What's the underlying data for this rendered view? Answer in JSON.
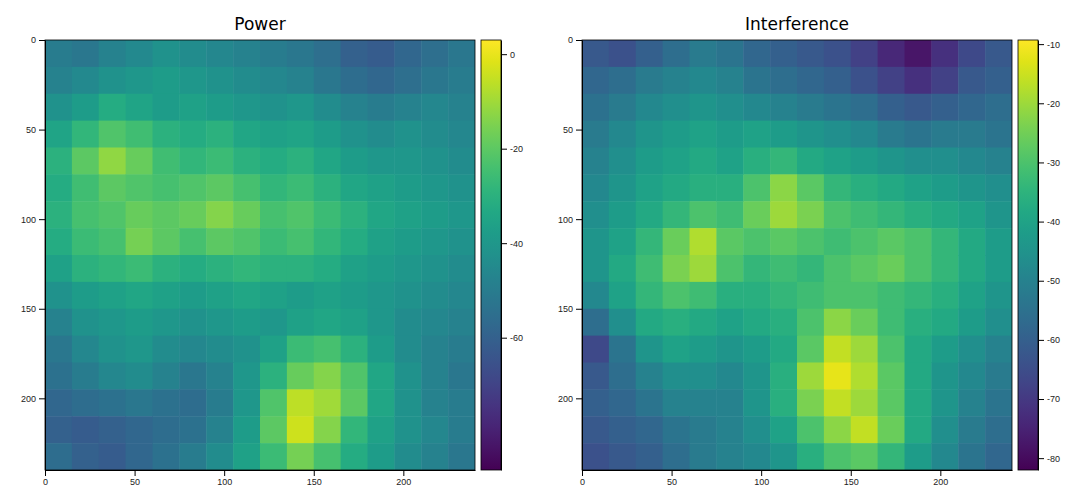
{
  "chart_data": [
    {
      "type": "heatmap",
      "title": "Power",
      "color": "viridis",
      "x_edges": [
        0,
        15,
        30,
        45,
        60,
        75,
        90,
        105,
        120,
        135,
        150,
        165,
        180,
        195,
        210,
        225,
        240
      ],
      "y_edges": [
        0,
        15,
        30,
        45,
        60,
        75,
        90,
        105,
        120,
        135,
        150,
        165,
        180,
        195,
        210,
        225,
        240
      ],
      "xlim": [
        0,
        240
      ],
      "ylim": [
        240,
        0
      ],
      "xticks": [
        0,
        50,
        100,
        150,
        200
      ],
      "yticks": [
        0,
        50,
        100,
        150,
        200
      ],
      "cells": [
        [
          -50,
          -52,
          -48,
          -45,
          -42,
          -44,
          -46,
          -48,
          -50,
          -52,
          -55,
          -60,
          -62,
          -58,
          -55,
          -52
        ],
        [
          -48,
          -45,
          -42,
          -40,
          -38,
          -40,
          -42,
          -44,
          -46,
          -48,
          -52,
          -56,
          -58,
          -55,
          -52,
          -50
        ],
        [
          -42,
          -38,
          -32,
          -35,
          -38,
          -36,
          -38,
          -40,
          -42,
          -40,
          -44,
          -48,
          -50,
          -48,
          -46,
          -48
        ],
        [
          -35,
          -28,
          -22,
          -25,
          -30,
          -32,
          -30,
          -34,
          -36,
          -35,
          -38,
          -42,
          -44,
          -42,
          -44,
          -46
        ],
        [
          -30,
          -20,
          -12,
          -18,
          -25,
          -28,
          -26,
          -30,
          -32,
          -30,
          -34,
          -38,
          -40,
          -40,
          -42,
          -44
        ],
        [
          -32,
          -25,
          -20,
          -22,
          -24,
          -22,
          -20,
          -24,
          -28,
          -26,
          -30,
          -34,
          -36,
          -38,
          -40,
          -42
        ],
        [
          -30,
          -24,
          -22,
          -18,
          -20,
          -18,
          -14,
          -18,
          -24,
          -22,
          -26,
          -30,
          -34,
          -36,
          -38,
          -40
        ],
        [
          -32,
          -26,
          -24,
          -16,
          -20,
          -24,
          -20,
          -22,
          -26,
          -24,
          -28,
          -32,
          -36,
          -38,
          -40,
          -42
        ],
        [
          -36,
          -30,
          -28,
          -26,
          -30,
          -32,
          -30,
          -28,
          -30,
          -30,
          -32,
          -36,
          -38,
          -40,
          -42,
          -44
        ],
        [
          -42,
          -38,
          -36,
          -34,
          -36,
          -38,
          -36,
          -34,
          -36,
          -38,
          -36,
          -38,
          -40,
          -42,
          -44,
          -46
        ],
        [
          -48,
          -42,
          -40,
          -38,
          -40,
          -42,
          -40,
          -38,
          -40,
          -36,
          -34,
          -36,
          -40,
          -44,
          -46,
          -48
        ],
        [
          -52,
          -46,
          -42,
          -40,
          -44,
          -46,
          -44,
          -42,
          -36,
          -26,
          -24,
          -30,
          -38,
          -44,
          -48,
          -50
        ],
        [
          -54,
          -50,
          -46,
          -44,
          -48,
          -52,
          -48,
          -40,
          -30,
          -18,
          -14,
          -22,
          -34,
          -42,
          -48,
          -52
        ],
        [
          -58,
          -56,
          -54,
          -52,
          -54,
          -56,
          -50,
          -40,
          -22,
          -6,
          -10,
          -20,
          -34,
          -42,
          -48,
          -50
        ],
        [
          -60,
          -62,
          -60,
          -58,
          -56,
          -54,
          -48,
          -38,
          -20,
          -4,
          -14,
          -28,
          -36,
          -42,
          -46,
          -50
        ],
        [
          -56,
          -60,
          -62,
          -58,
          -54,
          -50,
          -44,
          -36,
          -26,
          -16,
          -24,
          -32,
          -38,
          -44,
          -48,
          -52
        ]
      ],
      "colorbar": {
        "range": [
          -88,
          3
        ],
        "ticks": [
          0,
          -20,
          -40,
          -60
        ]
      }
    },
    {
      "type": "heatmap",
      "title": "Interference",
      "color": "viridis",
      "x_edges": [
        0,
        15,
        30,
        45,
        60,
        75,
        90,
        105,
        120,
        135,
        150,
        165,
        180,
        195,
        210,
        225,
        240
      ],
      "y_edges": [
        0,
        15,
        30,
        45,
        60,
        75,
        90,
        105,
        120,
        135,
        150,
        165,
        180,
        195,
        210,
        225,
        240
      ],
      "xlim": [
        0,
        240
      ],
      "ylim": [
        240,
        0
      ],
      "xticks": [
        0,
        50,
        100,
        150,
        200
      ],
      "yticks": [
        0,
        50,
        100,
        150,
        200
      ],
      "cells": [
        [
          -62,
          -64,
          -60,
          -56,
          -52,
          -54,
          -58,
          -60,
          -62,
          -64,
          -68,
          -74,
          -78,
          -72,
          -66,
          -62
        ],
        [
          -58,
          -56,
          -52,
          -50,
          -48,
          -50,
          -54,
          -56,
          -58,
          -60,
          -64,
          -68,
          -72,
          -68,
          -62,
          -60
        ],
        [
          -55,
          -52,
          -48,
          -46,
          -44,
          -46,
          -48,
          -50,
          -52,
          -54,
          -56,
          -60,
          -62,
          -60,
          -58,
          -56
        ],
        [
          -52,
          -48,
          -44,
          -42,
          -40,
          -42,
          -40,
          -42,
          -44,
          -46,
          -48,
          -52,
          -54,
          -52,
          -52,
          -54
        ],
        [
          -50,
          -46,
          -42,
          -40,
          -38,
          -40,
          -36,
          -34,
          -38,
          -40,
          -42,
          -44,
          -46,
          -46,
          -48,
          -50
        ],
        [
          -48,
          -44,
          -40,
          -38,
          -36,
          -36,
          -30,
          -22,
          -28,
          -34,
          -36,
          -38,
          -40,
          -42,
          -44,
          -46
        ],
        [
          -46,
          -42,
          -38,
          -34,
          -30,
          -32,
          -26,
          -20,
          -24,
          -30,
          -32,
          -34,
          -36,
          -38,
          -40,
          -44
        ],
        [
          -44,
          -40,
          -34,
          -26,
          -18,
          -28,
          -30,
          -28,
          -30,
          -32,
          -30,
          -28,
          -30,
          -34,
          -38,
          -42
        ],
        [
          -44,
          -38,
          -32,
          -24,
          -20,
          -30,
          -34,
          -32,
          -34,
          -30,
          -28,
          -26,
          -30,
          -34,
          -38,
          -42
        ],
        [
          -48,
          -40,
          -34,
          -30,
          -32,
          -36,
          -36,
          -34,
          -32,
          -30,
          -30,
          -32,
          -34,
          -36,
          -40,
          -44
        ],
        [
          -56,
          -46,
          -38,
          -36,
          -38,
          -40,
          -38,
          -36,
          -30,
          -22,
          -26,
          -32,
          -36,
          -38,
          -42,
          -46
        ],
        [
          -66,
          -54,
          -44,
          -40,
          -42,
          -44,
          -42,
          -38,
          -28,
          -16,
          -20,
          -30,
          -38,
          -42,
          -46,
          -50
        ],
        [
          -62,
          -56,
          -50,
          -46,
          -46,
          -48,
          -44,
          -36,
          -20,
          -12,
          -18,
          -28,
          -38,
          -44,
          -48,
          -52
        ],
        [
          -60,
          -58,
          -54,
          -50,
          -50,
          -50,
          -44,
          -36,
          -24,
          -16,
          -20,
          -28,
          -38,
          -44,
          -50,
          -54
        ],
        [
          -62,
          -60,
          -58,
          -54,
          -52,
          -50,
          -46,
          -40,
          -30,
          -22,
          -16,
          -26,
          -38,
          -46,
          -52,
          -56
        ],
        [
          -64,
          -62,
          -60,
          -56,
          -52,
          -50,
          -48,
          -44,
          -36,
          -30,
          -28,
          -34,
          -42,
          -48,
          -54,
          -58
        ]
      ],
      "colorbar": {
        "range": [
          -82,
          -9.3
        ],
        "ticks": [
          -10,
          -20,
          -30,
          -40,
          -50,
          -60,
          -70,
          -80
        ]
      }
    }
  ]
}
